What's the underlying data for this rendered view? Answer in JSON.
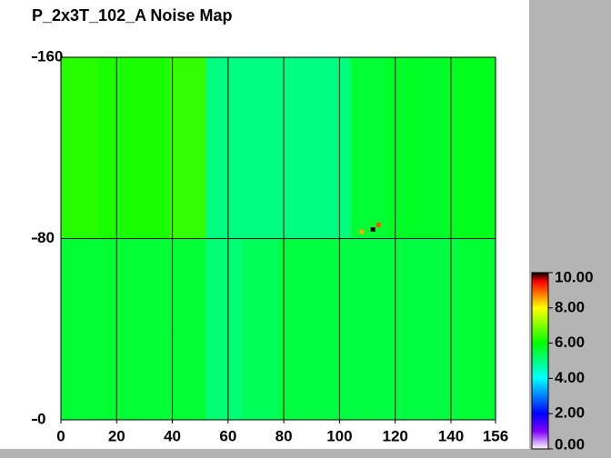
{
  "chart_data": {
    "type": "heatmap",
    "title": "P_2x3T_102_A Noise Map",
    "x_bins": [
      0,
      13,
      26,
      39,
      52,
      65,
      78,
      91,
      104,
      117,
      130,
      143,
      156
    ],
    "y_bins": [
      0,
      40,
      80,
      120,
      160
    ],
    "z": [
      [
        5.6,
        5.6,
        5.6,
        5.6,
        5.1,
        5.3,
        5.5,
        5.5,
        5.5,
        5.5,
        5.5,
        5.6
      ],
      [
        5.6,
        5.6,
        5.6,
        5.6,
        5.1,
        5.3,
        5.5,
        5.5,
        5.5,
        5.5,
        5.5,
        5.6
      ],
      [
        6.3,
        6.2,
        6.2,
        6.4,
        5.0,
        5.0,
        5.0,
        5.0,
        5.6,
        5.7,
        5.7,
        5.8
      ],
      [
        6.3,
        6.2,
        6.2,
        6.4,
        5.0,
        5.0,
        5.0,
        5.0,
        5.6,
        5.7,
        5.7,
        5.8
      ]
    ],
    "hot_pixels": {
      "x": [
        108,
        112,
        114
      ],
      "y": [
        83,
        84,
        86
      ],
      "values": [
        8.5,
        10,
        9
      ]
    },
    "xlim": [
      0,
      156
    ],
    "ylim": [
      0,
      160
    ],
    "xticks": [
      0,
      20,
      40,
      60,
      80,
      100,
      120,
      140,
      156
    ],
    "yticks": [
      0,
      80,
      160
    ],
    "grid": true,
    "clim": [
      0,
      10
    ],
    "cticks": [
      {
        "value": 0,
        "label": "0.00"
      },
      {
        "value": 2,
        "label": "2.00"
      },
      {
        "value": 4,
        "label": "4.00"
      },
      {
        "value": 6,
        "label": "6.00"
      },
      {
        "value": 8,
        "label": "8.00"
      },
      {
        "value": 10,
        "label": "10.00"
      }
    ],
    "colorscale": [
      {
        "value": 0,
        "color": "#ffffff"
      },
      {
        "value": 1,
        "color": "#8000ff"
      },
      {
        "value": 2,
        "color": "#0000ff"
      },
      {
        "value": 4,
        "color": "#00ffff"
      },
      {
        "value": 6,
        "color": "#00ff00"
      },
      {
        "value": 8,
        "color": "#ffff00"
      },
      {
        "value": 9.5,
        "color": "#ff0000"
      },
      {
        "value": 10,
        "color": "#000000"
      }
    ]
  }
}
